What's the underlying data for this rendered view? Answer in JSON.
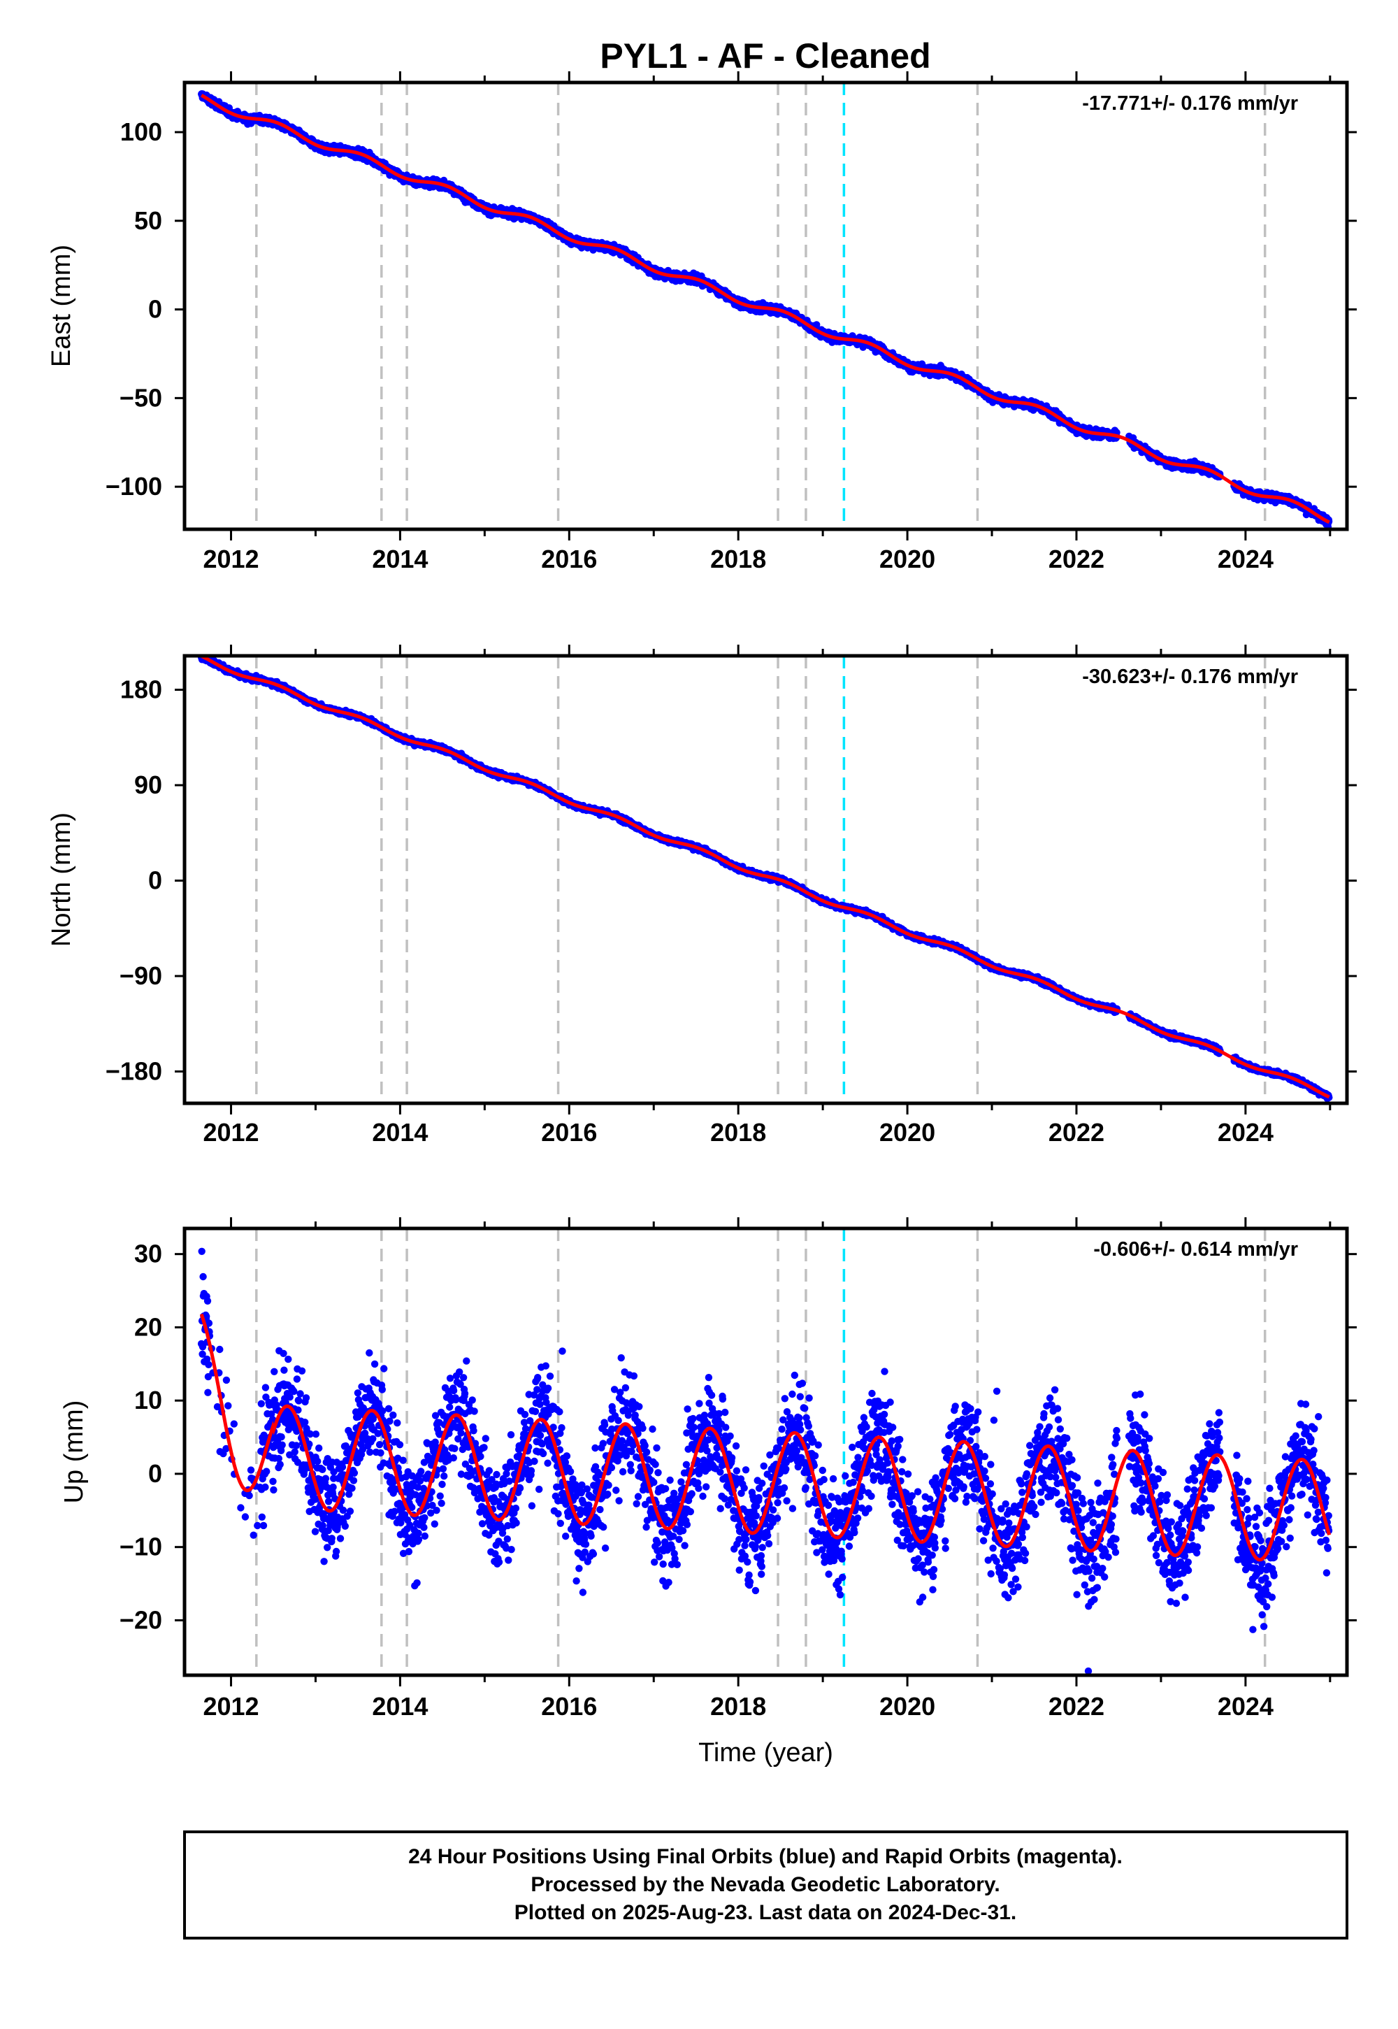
{
  "title": "PYL1  - AF - Cleaned",
  "colors": {
    "points": "#0000ff",
    "fit": "#ff0000",
    "equipment_change": "#c0c0c0",
    "earthquake": "#00e5ff",
    "frame": "#000000"
  },
  "chart_data": [
    {
      "type": "scatter",
      "component": "east",
      "ylabel": "East (mm)",
      "xlabel": "",
      "rate_text": "-17.771+/- 0.176 mm/yr",
      "xlim": [
        2011.45,
        2025.2
      ],
      "ylim": [
        -124,
        128
      ],
      "xticks": [
        2012,
        2014,
        2016,
        2018,
        2020,
        2022,
        2024
      ],
      "yticks": [
        100,
        50,
        0,
        -50,
        -100
      ],
      "ytick_labels": [
        "100",
        "50",
        "0",
        "−50",
        "−100"
      ],
      "start_value": 119,
      "end_value": -118,
      "gaps": [
        [
          2022.48,
          2022.62
        ],
        [
          2023.7,
          2023.86
        ]
      ],
      "points_per_year": 300,
      "noise_mm": 1.6,
      "grid": false
    },
    {
      "type": "scatter",
      "component": "north",
      "ylabel": "North (mm)",
      "xlabel": "",
      "rate_text": "-30.623+/- 0.176 mm/yr",
      "xlim": [
        2011.45,
        2025.2
      ],
      "ylim": [
        -210,
        212
      ],
      "xticks": [
        2012,
        2014,
        2016,
        2018,
        2020,
        2022,
        2024
      ],
      "yticks": [
        180,
        90,
        0,
        -90,
        -180
      ],
      "ytick_labels": [
        "180",
        "90",
        "0",
        "−90",
        "−180"
      ],
      "start_value": 210,
      "end_value": -202,
      "gaps": [
        [
          2022.48,
          2022.62
        ],
        [
          2023.7,
          2023.86
        ]
      ],
      "points_per_year": 300,
      "noise_mm": 1.6,
      "grid": false
    },
    {
      "type": "scatter",
      "component": "up",
      "ylabel": "Up (mm)",
      "xlabel": "Time (year)",
      "rate_text": "-0.606+/- 0.614 mm/yr",
      "xlim": [
        2011.45,
        2025.2
      ],
      "ylim": [
        -27.5,
        33.5
      ],
      "xticks": [
        2012,
        2014,
        2016,
        2018,
        2020,
        2022,
        2024
      ],
      "yticks": [
        30,
        20,
        10,
        0,
        -10,
        -20
      ],
      "ytick_labels": [
        "30",
        "20",
        "10",
        "0",
        "−10",
        "−20"
      ],
      "seasonal_amplitude_mm": 7,
      "seasonal_peak_month": 8,
      "start_value": 18,
      "trend_mm_per_yr": -0.606,
      "noise_mm": 5,
      "gaps": [
        [
          2022.48,
          2022.62
        ],
        [
          2023.7,
          2023.86
        ]
      ],
      "points_per_year": 260,
      "grid": false
    }
  ],
  "equipment_change_epochs": [
    2012.3,
    2013.78,
    2014.08,
    2015.87,
    2018.47,
    2018.8
  ],
  "equipment_change_epochs_extra": [
    2020.83,
    2024.23
  ],
  "earthquake_epochs": [
    2019.25
  ],
  "footer": {
    "line1": "24 Hour Positions Using Final Orbits (blue) and Rapid Orbits (magenta).",
    "line2": "Processed by the Nevada Geodetic Laboratory.",
    "line3": "Plotted on 2025-Aug-23. Last data on 2024-Dec-31."
  }
}
